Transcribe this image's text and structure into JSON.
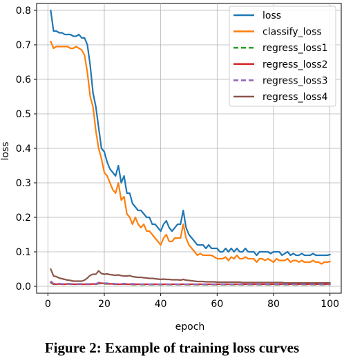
{
  "caption": "Figure 2: Example of training loss curves",
  "chart_data": {
    "type": "line",
    "xlabel": "epoch",
    "ylabel": "loss",
    "xlim": [
      -4,
      104
    ],
    "ylim": [
      -0.02,
      0.82
    ],
    "xticks": [
      0,
      20,
      40,
      60,
      80,
      100
    ],
    "yticks": [
      0.0,
      0.1,
      0.2,
      0.3,
      0.4,
      0.5,
      0.6,
      0.7,
      0.8
    ],
    "ytick_labels": [
      "0.0",
      "0.1",
      "0.2",
      "0.3",
      "0.4",
      "0.5",
      "0.6",
      "0.7",
      "0.8"
    ],
    "grid": true,
    "legend_position": "top-right",
    "x": [
      1,
      2,
      3,
      4,
      5,
      6,
      7,
      8,
      9,
      10,
      11,
      12,
      13,
      14,
      15,
      16,
      17,
      18,
      19,
      20,
      21,
      22,
      23,
      24,
      25,
      26,
      27,
      28,
      29,
      30,
      31,
      32,
      33,
      34,
      35,
      36,
      37,
      38,
      39,
      40,
      41,
      42,
      43,
      44,
      45,
      46,
      47,
      48,
      49,
      50,
      51,
      52,
      53,
      54,
      55,
      56,
      57,
      58,
      59,
      60,
      61,
      62,
      63,
      64,
      65,
      66,
      67,
      68,
      69,
      70,
      71,
      72,
      73,
      74,
      75,
      76,
      77,
      78,
      79,
      80,
      81,
      82,
      83,
      84,
      85,
      86,
      87,
      88,
      89,
      90,
      91,
      92,
      93,
      94,
      95,
      96,
      97,
      98,
      99,
      100
    ],
    "series": [
      {
        "name": "loss",
        "color": "#1f77b4",
        "dash": "",
        "values": [
          0.8,
          0.74,
          0.74,
          0.735,
          0.735,
          0.73,
          0.73,
          0.73,
          0.725,
          0.725,
          0.73,
          0.72,
          0.72,
          0.7,
          0.64,
          0.56,
          0.52,
          0.46,
          0.4,
          0.39,
          0.36,
          0.34,
          0.33,
          0.32,
          0.35,
          0.3,
          0.32,
          0.27,
          0.27,
          0.24,
          0.23,
          0.22,
          0.22,
          0.21,
          0.2,
          0.2,
          0.18,
          0.18,
          0.17,
          0.16,
          0.18,
          0.19,
          0.17,
          0.16,
          0.17,
          0.18,
          0.18,
          0.22,
          0.17,
          0.15,
          0.14,
          0.13,
          0.12,
          0.12,
          0.12,
          0.11,
          0.12,
          0.11,
          0.11,
          0.11,
          0.1,
          0.1,
          0.11,
          0.1,
          0.11,
          0.1,
          0.11,
          0.1,
          0.1,
          0.11,
          0.1,
          0.1,
          0.1,
          0.09,
          0.1,
          0.1,
          0.1,
          0.1,
          0.095,
          0.1,
          0.1,
          0.1,
          0.09,
          0.095,
          0.1,
          0.09,
          0.095,
          0.09,
          0.09,
          0.095,
          0.09,
          0.09,
          0.09,
          0.095,
          0.09,
          0.09,
          0.09,
          0.09,
          0.09,
          0.092
        ]
      },
      {
        "name": "classify_loss",
        "color": "#ff7f0e",
        "dash": "",
        "values": [
          0.71,
          0.69,
          0.695,
          0.695,
          0.695,
          0.695,
          0.695,
          0.69,
          0.69,
          0.695,
          0.69,
          0.685,
          0.67,
          0.62,
          0.55,
          0.52,
          0.45,
          0.4,
          0.37,
          0.33,
          0.32,
          0.3,
          0.28,
          0.27,
          0.3,
          0.25,
          0.26,
          0.21,
          0.2,
          0.18,
          0.2,
          0.18,
          0.17,
          0.18,
          0.16,
          0.16,
          0.15,
          0.14,
          0.13,
          0.12,
          0.14,
          0.15,
          0.13,
          0.13,
          0.14,
          0.14,
          0.14,
          0.18,
          0.14,
          0.12,
          0.11,
          0.1,
          0.09,
          0.095,
          0.09,
          0.09,
          0.09,
          0.09,
          0.085,
          0.08,
          0.08,
          0.08,
          0.085,
          0.075,
          0.085,
          0.08,
          0.09,
          0.08,
          0.08,
          0.085,
          0.08,
          0.08,
          0.08,
          0.07,
          0.08,
          0.08,
          0.075,
          0.08,
          0.075,
          0.07,
          0.08,
          0.075,
          0.075,
          0.075,
          0.08,
          0.07,
          0.075,
          0.075,
          0.07,
          0.075,
          0.07,
          0.07,
          0.07,
          0.075,
          0.07,
          0.07,
          0.065,
          0.07,
          0.07,
          0.072
        ]
      },
      {
        "name": "regress_loss1",
        "color": "#2ca02c",
        "dash": "8,5",
        "values": [
          0.01,
          0.006,
          0.006,
          0.007,
          0.006,
          0.006,
          0.007,
          0.006,
          0.006,
          0.006,
          0.006,
          0.006,
          0.006,
          0.006,
          0.006,
          0.007,
          0.006,
          0.008,
          0.008,
          0.007,
          0.007,
          0.007,
          0.006,
          0.006,
          0.006,
          0.006,
          0.006,
          0.006,
          0.006,
          0.005,
          0.005,
          0.006,
          0.005,
          0.005,
          0.005,
          0.005,
          0.005,
          0.005,
          0.005,
          0.005,
          0.005,
          0.005,
          0.005,
          0.005,
          0.005,
          0.005,
          0.005,
          0.005,
          0.005,
          0.005,
          0.005,
          0.005,
          0.005,
          0.005,
          0.005,
          0.005,
          0.005,
          0.005,
          0.005,
          0.005,
          0.005,
          0.005,
          0.005,
          0.005,
          0.005,
          0.005,
          0.005,
          0.005,
          0.005,
          0.005,
          0.005,
          0.005,
          0.005,
          0.005,
          0.005,
          0.005,
          0.005,
          0.005,
          0.005,
          0.005,
          0.005,
          0.005,
          0.005,
          0.005,
          0.005,
          0.005,
          0.005,
          0.005,
          0.005,
          0.005,
          0.005,
          0.005,
          0.005,
          0.005,
          0.005,
          0.005,
          0.005,
          0.005,
          0.005,
          0.005
        ]
      },
      {
        "name": "regress_loss2",
        "color": "#d62728",
        "dash": "",
        "values": [
          0.012,
          0.007,
          0.006,
          0.007,
          0.006,
          0.006,
          0.007,
          0.007,
          0.006,
          0.006,
          0.007,
          0.006,
          0.006,
          0.006,
          0.006,
          0.007,
          0.006,
          0.01,
          0.009,
          0.008,
          0.008,
          0.007,
          0.007,
          0.006,
          0.006,
          0.006,
          0.007,
          0.006,
          0.006,
          0.006,
          0.006,
          0.006,
          0.006,
          0.006,
          0.006,
          0.006,
          0.006,
          0.006,
          0.006,
          0.006,
          0.006,
          0.006,
          0.006,
          0.006,
          0.006,
          0.006,
          0.006,
          0.006,
          0.006,
          0.006,
          0.006,
          0.006,
          0.006,
          0.006,
          0.006,
          0.006,
          0.006,
          0.006,
          0.006,
          0.006,
          0.006,
          0.006,
          0.006,
          0.006,
          0.006,
          0.006,
          0.006,
          0.006,
          0.006,
          0.006,
          0.006,
          0.006,
          0.006,
          0.006,
          0.006,
          0.006,
          0.006,
          0.006,
          0.006,
          0.006,
          0.006,
          0.006,
          0.006,
          0.006,
          0.006,
          0.006,
          0.006,
          0.006,
          0.006,
          0.006,
          0.006,
          0.006,
          0.006,
          0.006,
          0.006,
          0.006,
          0.006,
          0.006,
          0.006,
          0.006
        ]
      },
      {
        "name": "regress_loss3",
        "color": "#9467bd",
        "dash": "8,5",
        "values": [
          0.015,
          0.008,
          0.007,
          0.008,
          0.007,
          0.007,
          0.008,
          0.007,
          0.007,
          0.007,
          0.007,
          0.007,
          0.007,
          0.007,
          0.007,
          0.008,
          0.007,
          0.011,
          0.01,
          0.009,
          0.009,
          0.008,
          0.008,
          0.007,
          0.007,
          0.007,
          0.008,
          0.007,
          0.007,
          0.007,
          0.007,
          0.007,
          0.006,
          0.006,
          0.006,
          0.006,
          0.006,
          0.006,
          0.006,
          0.006,
          0.006,
          0.006,
          0.006,
          0.006,
          0.006,
          0.006,
          0.006,
          0.006,
          0.006,
          0.006,
          0.006,
          0.006,
          0.006,
          0.006,
          0.006,
          0.006,
          0.006,
          0.006,
          0.006,
          0.006,
          0.006,
          0.006,
          0.006,
          0.006,
          0.006,
          0.006,
          0.006,
          0.006,
          0.006,
          0.006,
          0.006,
          0.006,
          0.006,
          0.006,
          0.006,
          0.006,
          0.006,
          0.006,
          0.006,
          0.006,
          0.006,
          0.006,
          0.006,
          0.006,
          0.006,
          0.006,
          0.006,
          0.006,
          0.006,
          0.006,
          0.006,
          0.006,
          0.006,
          0.006,
          0.006,
          0.006,
          0.006,
          0.006,
          0.006,
          0.006
        ]
      },
      {
        "name": "regress_loss4",
        "color": "#8c564b",
        "dash": "",
        "values": [
          0.05,
          0.03,
          0.028,
          0.024,
          0.022,
          0.02,
          0.018,
          0.017,
          0.015,
          0.015,
          0.015,
          0.015,
          0.018,
          0.024,
          0.032,
          0.035,
          0.035,
          0.045,
          0.037,
          0.035,
          0.036,
          0.034,
          0.033,
          0.032,
          0.033,
          0.031,
          0.03,
          0.03,
          0.031,
          0.028,
          0.027,
          0.026,
          0.026,
          0.025,
          0.024,
          0.023,
          0.023,
          0.022,
          0.021,
          0.02,
          0.021,
          0.02,
          0.02,
          0.019,
          0.019,
          0.019,
          0.018,
          0.02,
          0.018,
          0.017,
          0.016,
          0.015,
          0.014,
          0.014,
          0.014,
          0.013,
          0.013,
          0.013,
          0.013,
          0.012,
          0.012,
          0.012,
          0.012,
          0.012,
          0.012,
          0.012,
          0.012,
          0.012,
          0.011,
          0.011,
          0.011,
          0.011,
          0.011,
          0.011,
          0.011,
          0.011,
          0.011,
          0.011,
          0.011,
          0.011,
          0.011,
          0.011,
          0.011,
          0.01,
          0.01,
          0.01,
          0.01,
          0.01,
          0.01,
          0.01,
          0.01,
          0.01,
          0.01,
          0.01,
          0.01,
          0.01,
          0.01,
          0.01,
          0.01,
          0.01
        ]
      }
    ]
  }
}
